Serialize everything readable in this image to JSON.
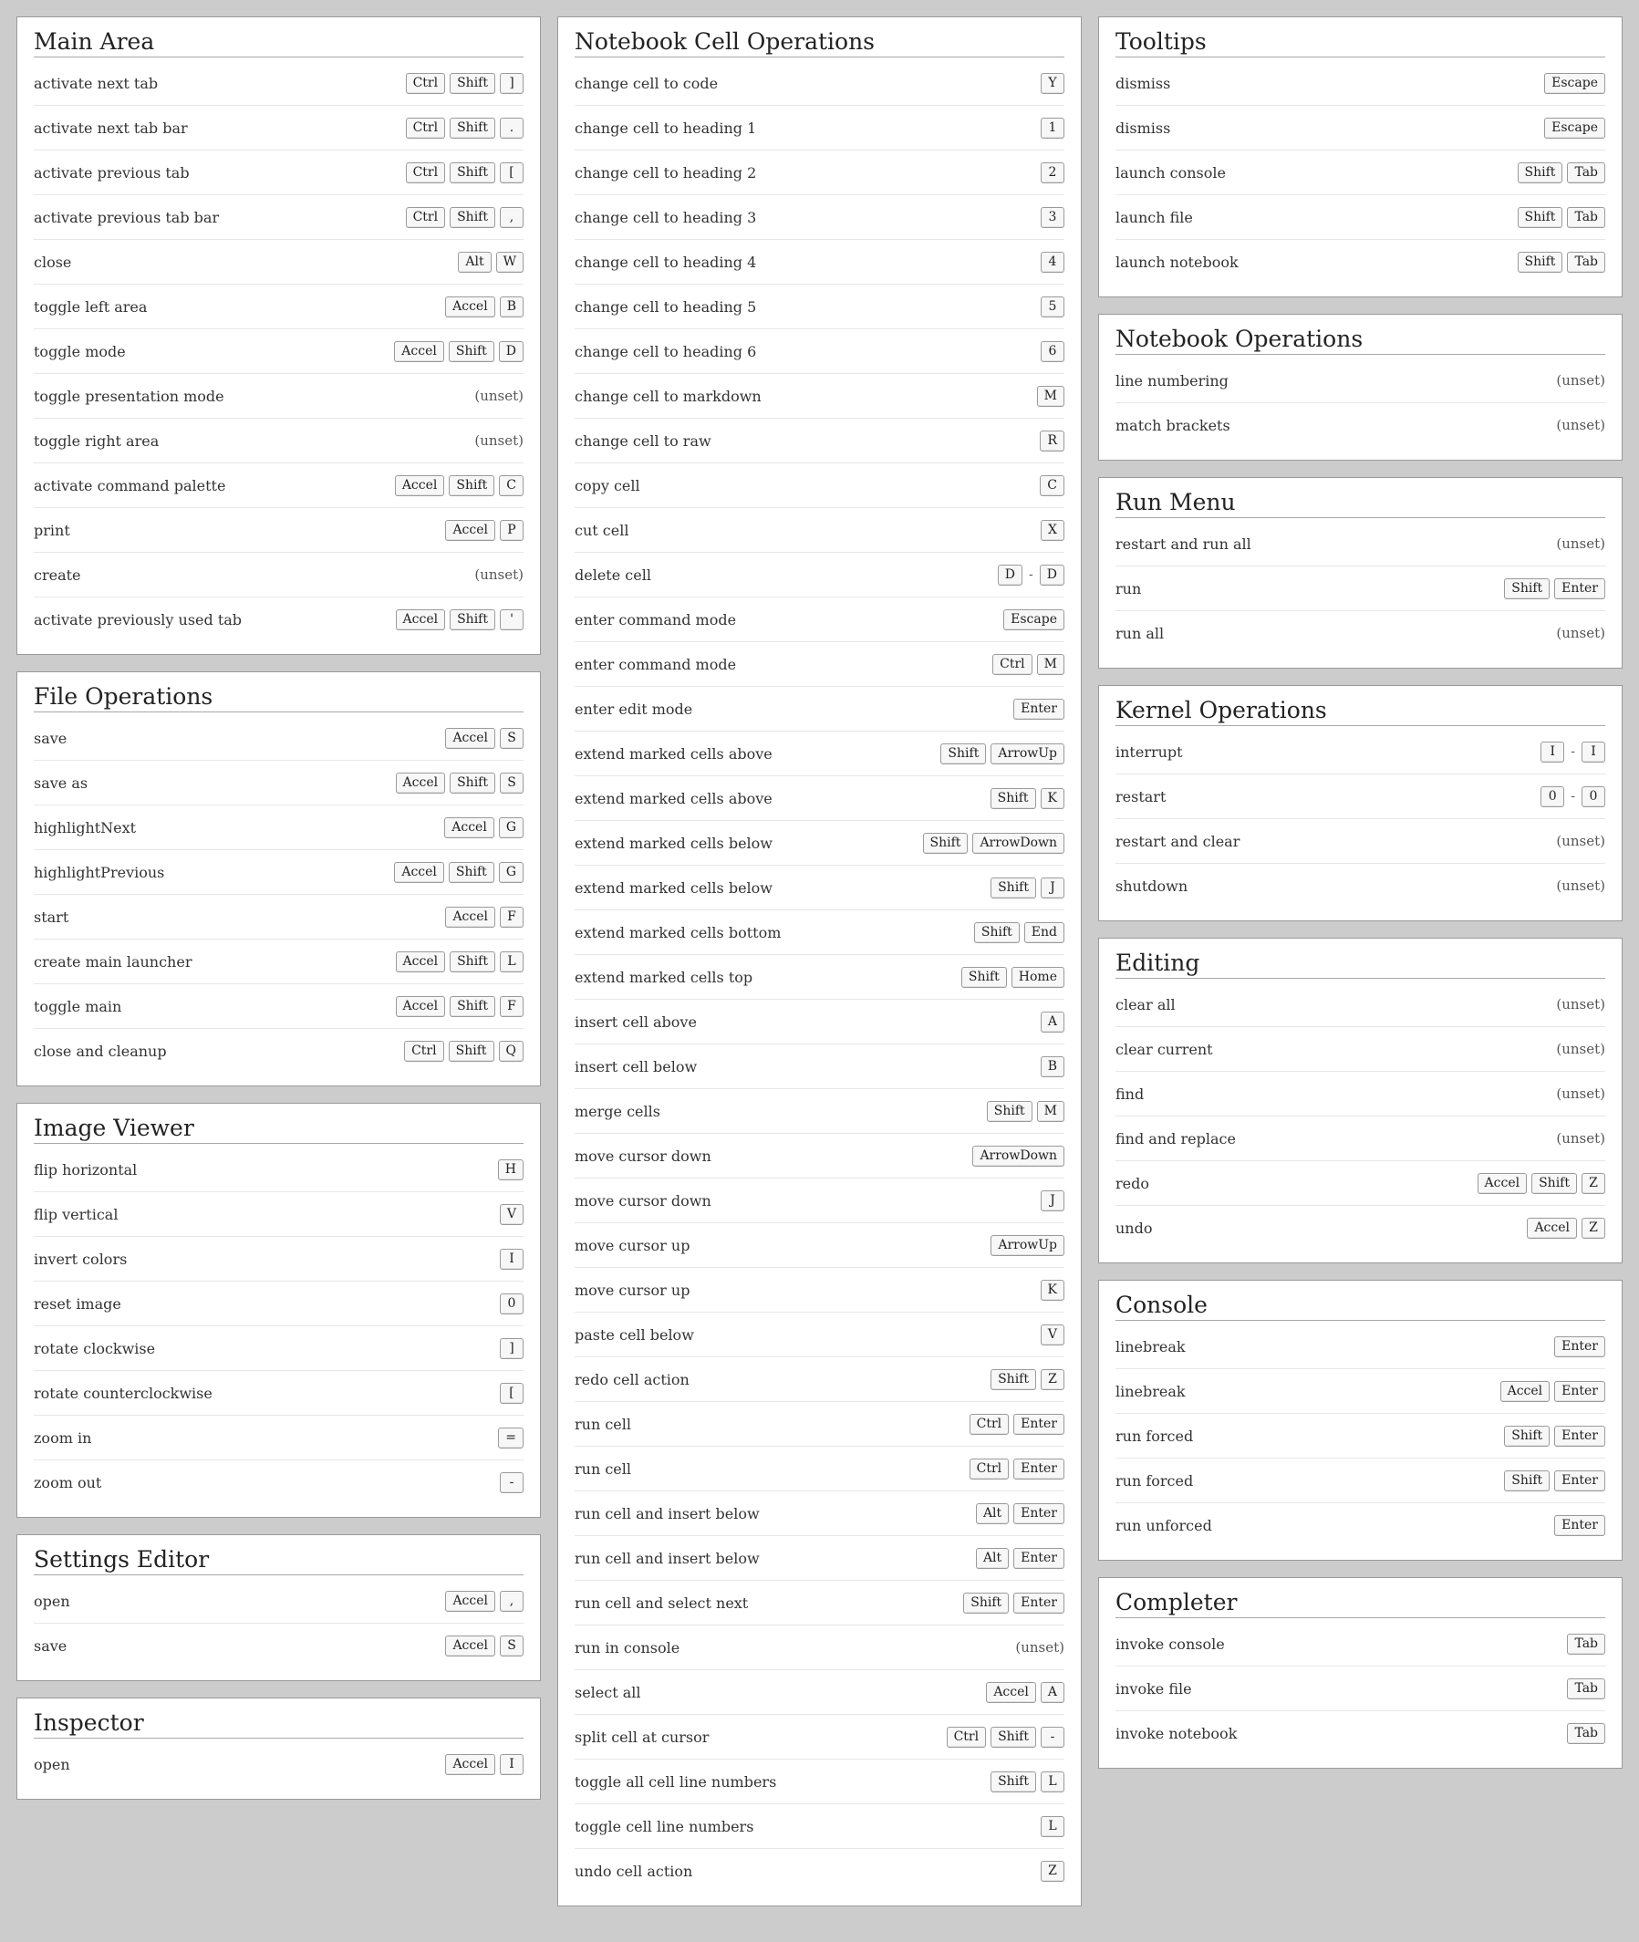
{
  "unset_label": "(unset)",
  "key_sep": "-",
  "columns": [
    [
      {
        "title": "Main Area",
        "rows": [
          {
            "label": "activate next tab",
            "keys": [
              [
                "Ctrl",
                "Shift",
                "]"
              ]
            ]
          },
          {
            "label": "activate next tab bar",
            "keys": [
              [
                "Ctrl",
                "Shift",
                "."
              ]
            ]
          },
          {
            "label": "activate previous tab",
            "keys": [
              [
                "Ctrl",
                "Shift",
                "["
              ]
            ]
          },
          {
            "label": "activate previous tab bar",
            "keys": [
              [
                "Ctrl",
                "Shift",
                ","
              ]
            ]
          },
          {
            "label": "close",
            "keys": [
              [
                "Alt",
                "W"
              ]
            ]
          },
          {
            "label": "toggle left area",
            "keys": [
              [
                "Accel",
                "B"
              ]
            ]
          },
          {
            "label": "toggle mode",
            "keys": [
              [
                "Accel",
                "Shift",
                "D"
              ]
            ]
          },
          {
            "label": "toggle presentation mode",
            "unset": true
          },
          {
            "label": "toggle right area",
            "unset": true
          },
          {
            "label": "activate command palette",
            "keys": [
              [
                "Accel",
                "Shift",
                "C"
              ]
            ]
          },
          {
            "label": "print",
            "keys": [
              [
                "Accel",
                "P"
              ]
            ]
          },
          {
            "label": "create",
            "unset": true
          },
          {
            "label": "activate previously used tab",
            "keys": [
              [
                "Accel",
                "Shift",
                "'"
              ]
            ]
          }
        ]
      },
      {
        "title": "File Operations",
        "rows": [
          {
            "label": "save",
            "keys": [
              [
                "Accel",
                "S"
              ]
            ]
          },
          {
            "label": "save as",
            "keys": [
              [
                "Accel",
                "Shift",
                "S"
              ]
            ]
          },
          {
            "label": "highlightNext",
            "keys": [
              [
                "Accel",
                "G"
              ]
            ]
          },
          {
            "label": "highlightPrevious",
            "keys": [
              [
                "Accel",
                "Shift",
                "G"
              ]
            ]
          },
          {
            "label": "start",
            "keys": [
              [
                "Accel",
                "F"
              ]
            ]
          },
          {
            "label": "create main launcher",
            "keys": [
              [
                "Accel",
                "Shift",
                "L"
              ]
            ]
          },
          {
            "label": "toggle main",
            "keys": [
              [
                "Accel",
                "Shift",
                "F"
              ]
            ]
          },
          {
            "label": "close and cleanup",
            "keys": [
              [
                "Ctrl",
                "Shift",
                "Q"
              ]
            ]
          }
        ]
      },
      {
        "title": "Image Viewer",
        "rows": [
          {
            "label": "flip horizontal",
            "keys": [
              [
                "H"
              ]
            ]
          },
          {
            "label": "flip vertical",
            "keys": [
              [
                "V"
              ]
            ]
          },
          {
            "label": "invert colors",
            "keys": [
              [
                "I"
              ]
            ]
          },
          {
            "label": "reset image",
            "keys": [
              [
                "0"
              ]
            ]
          },
          {
            "label": "rotate clockwise",
            "keys": [
              [
                "]"
              ]
            ]
          },
          {
            "label": "rotate counterclockwise",
            "keys": [
              [
                "["
              ]
            ]
          },
          {
            "label": "zoom in",
            "keys": [
              [
                "="
              ]
            ]
          },
          {
            "label": "zoom out",
            "keys": [
              [
                "-"
              ]
            ]
          }
        ]
      },
      {
        "title": "Settings Editor",
        "rows": [
          {
            "label": "open",
            "keys": [
              [
                "Accel",
                ","
              ]
            ]
          },
          {
            "label": "save",
            "keys": [
              [
                "Accel",
                "S"
              ]
            ]
          }
        ]
      },
      {
        "title": "Inspector",
        "rows": [
          {
            "label": "open",
            "keys": [
              [
                "Accel",
                "I"
              ]
            ]
          }
        ]
      }
    ],
    [
      {
        "title": "Notebook Cell Operations",
        "rows": [
          {
            "label": "change cell to code",
            "keys": [
              [
                "Y"
              ]
            ]
          },
          {
            "label": "change cell to heading 1",
            "keys": [
              [
                "1"
              ]
            ]
          },
          {
            "label": "change cell to heading 2",
            "keys": [
              [
                "2"
              ]
            ]
          },
          {
            "label": "change cell to heading 3",
            "keys": [
              [
                "3"
              ]
            ]
          },
          {
            "label": "change cell to heading 4",
            "keys": [
              [
                "4"
              ]
            ]
          },
          {
            "label": "change cell to heading 5",
            "keys": [
              [
                "5"
              ]
            ]
          },
          {
            "label": "change cell to heading 6",
            "keys": [
              [
                "6"
              ]
            ]
          },
          {
            "label": "change cell to markdown",
            "keys": [
              [
                "M"
              ]
            ]
          },
          {
            "label": "change cell to raw",
            "keys": [
              [
                "R"
              ]
            ]
          },
          {
            "label": "copy cell",
            "keys": [
              [
                "C"
              ]
            ]
          },
          {
            "label": "cut cell",
            "keys": [
              [
                "X"
              ]
            ]
          },
          {
            "label": "delete cell",
            "keys": [
              [
                "D"
              ],
              [
                "D"
              ]
            ]
          },
          {
            "label": "enter command mode",
            "keys": [
              [
                "Escape"
              ]
            ]
          },
          {
            "label": "enter command mode",
            "keys": [
              [
                "Ctrl",
                "M"
              ]
            ]
          },
          {
            "label": "enter edit mode",
            "keys": [
              [
                "Enter"
              ]
            ]
          },
          {
            "label": "extend marked cells above",
            "keys": [
              [
                "Shift",
                "ArrowUp"
              ]
            ]
          },
          {
            "label": "extend marked cells above",
            "keys": [
              [
                "Shift",
                "K"
              ]
            ]
          },
          {
            "label": "extend marked cells below",
            "keys": [
              [
                "Shift",
                "ArrowDown"
              ]
            ]
          },
          {
            "label": "extend marked cells below",
            "keys": [
              [
                "Shift",
                "J"
              ]
            ]
          },
          {
            "label": "extend marked cells bottom",
            "keys": [
              [
                "Shift",
                "End"
              ]
            ]
          },
          {
            "label": "extend marked cells top",
            "keys": [
              [
                "Shift",
                "Home"
              ]
            ]
          },
          {
            "label": "insert cell above",
            "keys": [
              [
                "A"
              ]
            ]
          },
          {
            "label": "insert cell below",
            "keys": [
              [
                "B"
              ]
            ]
          },
          {
            "label": "merge cells",
            "keys": [
              [
                "Shift",
                "M"
              ]
            ]
          },
          {
            "label": "move cursor down",
            "keys": [
              [
                "ArrowDown"
              ]
            ]
          },
          {
            "label": "move cursor down",
            "keys": [
              [
                "J"
              ]
            ]
          },
          {
            "label": "move cursor up",
            "keys": [
              [
                "ArrowUp"
              ]
            ]
          },
          {
            "label": "move cursor up",
            "keys": [
              [
                "K"
              ]
            ]
          },
          {
            "label": "paste cell below",
            "keys": [
              [
                "V"
              ]
            ]
          },
          {
            "label": "redo cell action",
            "keys": [
              [
                "Shift",
                "Z"
              ]
            ]
          },
          {
            "label": "run cell",
            "keys": [
              [
                "Ctrl",
                "Enter"
              ]
            ]
          },
          {
            "label": "run cell",
            "keys": [
              [
                "Ctrl",
                "Enter"
              ]
            ]
          },
          {
            "label": "run cell and insert below",
            "keys": [
              [
                "Alt",
                "Enter"
              ]
            ]
          },
          {
            "label": "run cell and insert below",
            "keys": [
              [
                "Alt",
                "Enter"
              ]
            ]
          },
          {
            "label": "run cell and select next",
            "keys": [
              [
                "Shift",
                "Enter"
              ]
            ]
          },
          {
            "label": "run in console",
            "unset": true
          },
          {
            "label": "select all",
            "keys": [
              [
                "Accel",
                "A"
              ]
            ]
          },
          {
            "label": "split cell at cursor",
            "keys": [
              [
                "Ctrl",
                "Shift",
                "-"
              ]
            ]
          },
          {
            "label": "toggle all cell line numbers",
            "keys": [
              [
                "Shift",
                "L"
              ]
            ]
          },
          {
            "label": "toggle cell line numbers",
            "keys": [
              [
                "L"
              ]
            ]
          },
          {
            "label": "undo cell action",
            "keys": [
              [
                "Z"
              ]
            ]
          }
        ]
      }
    ],
    [
      {
        "title": "Tooltips",
        "rows": [
          {
            "label": "dismiss",
            "keys": [
              [
                "Escape"
              ]
            ]
          },
          {
            "label": "dismiss",
            "keys": [
              [
                "Escape"
              ]
            ]
          },
          {
            "label": "launch console",
            "keys": [
              [
                "Shift",
                "Tab"
              ]
            ]
          },
          {
            "label": "launch file",
            "keys": [
              [
                "Shift",
                "Tab"
              ]
            ]
          },
          {
            "label": "launch notebook",
            "keys": [
              [
                "Shift",
                "Tab"
              ]
            ]
          }
        ]
      },
      {
        "title": "Notebook Operations",
        "rows": [
          {
            "label": "line numbering",
            "unset": true
          },
          {
            "label": "match brackets",
            "unset": true
          }
        ]
      },
      {
        "title": "Run Menu",
        "rows": [
          {
            "label": "restart and run all",
            "unset": true
          },
          {
            "label": "run",
            "keys": [
              [
                "Shift",
                "Enter"
              ]
            ]
          },
          {
            "label": "run all",
            "unset": true
          }
        ]
      },
      {
        "title": "Kernel Operations",
        "rows": [
          {
            "label": "interrupt",
            "keys": [
              [
                "I"
              ],
              [
                "I"
              ]
            ]
          },
          {
            "label": "restart",
            "keys": [
              [
                "0"
              ],
              [
                "0"
              ]
            ]
          },
          {
            "label": "restart and clear",
            "unset": true
          },
          {
            "label": "shutdown",
            "unset": true
          }
        ]
      },
      {
        "title": "Editing",
        "rows": [
          {
            "label": "clear all",
            "unset": true
          },
          {
            "label": "clear current",
            "unset": true
          },
          {
            "label": "find",
            "unset": true
          },
          {
            "label": "find and replace",
            "unset": true
          },
          {
            "label": "redo",
            "keys": [
              [
                "Accel",
                "Shift",
                "Z"
              ]
            ]
          },
          {
            "label": "undo",
            "keys": [
              [
                "Accel",
                "Z"
              ]
            ]
          }
        ]
      },
      {
        "title": "Console",
        "rows": [
          {
            "label": "linebreak",
            "keys": [
              [
                "Enter"
              ]
            ]
          },
          {
            "label": "linebreak",
            "keys": [
              [
                "Accel",
                "Enter"
              ]
            ]
          },
          {
            "label": "run forced",
            "keys": [
              [
                "Shift",
                "Enter"
              ]
            ]
          },
          {
            "label": "run forced",
            "keys": [
              [
                "Shift",
                "Enter"
              ]
            ]
          },
          {
            "label": "run unforced",
            "keys": [
              [
                "Enter"
              ]
            ]
          }
        ]
      },
      {
        "title": "Completer",
        "rows": [
          {
            "label": "invoke console",
            "keys": [
              [
                "Tab"
              ]
            ]
          },
          {
            "label": "invoke file",
            "keys": [
              [
                "Tab"
              ]
            ]
          },
          {
            "label": "invoke notebook",
            "keys": [
              [
                "Tab"
              ]
            ]
          }
        ]
      }
    ]
  ]
}
